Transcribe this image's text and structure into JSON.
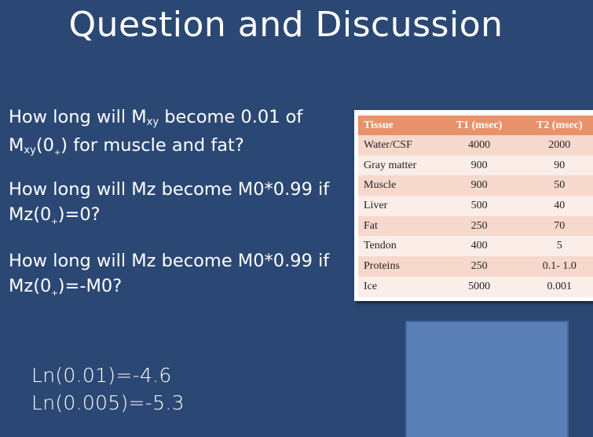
{
  "slide": {
    "title": "Question and Discussion",
    "questions": {
      "q1": {
        "part1": "How long will M",
        "sub1": "xy",
        "part2": " become 0.01 of M",
        "sub2": "xy",
        "part3": "(0",
        "sub3": "+",
        "part4": ") for muscle and fat?"
      },
      "q2": {
        "part1": "How long will Mz become M0*0.99 if Mz(0",
        "sub1": "+",
        "part2": ")=0?"
      },
      "q3": {
        "part1": "How long will Mz become M0*0.99 if Mz(0",
        "sub1": "+",
        "part2": ")=-M0?"
      }
    },
    "table": {
      "headers": [
        "Tissue",
        "T1 (msec)",
        "T2 (msec)"
      ],
      "rows": [
        [
          "Water/CSF",
          "4000",
          "2000"
        ],
        [
          "Gray matter",
          "900",
          "90"
        ],
        [
          "Muscle",
          "900",
          "50"
        ],
        [
          "Liver",
          "500",
          "40"
        ],
        [
          "Fat",
          "250",
          "70"
        ],
        [
          "Tendon",
          "400",
          "5"
        ],
        [
          "Proteins",
          "250",
          "0.1- 1.0"
        ],
        [
          "Ice",
          "5000",
          "0.001"
        ]
      ]
    },
    "hints": {
      "ln1": "Ln(0.01)=-4.6",
      "ln2": "Ln(0.005)=-5.3"
    },
    "colors": {
      "background": "#2b4874",
      "table_header": "#e8916a",
      "box": "#5b80b8"
    }
  }
}
